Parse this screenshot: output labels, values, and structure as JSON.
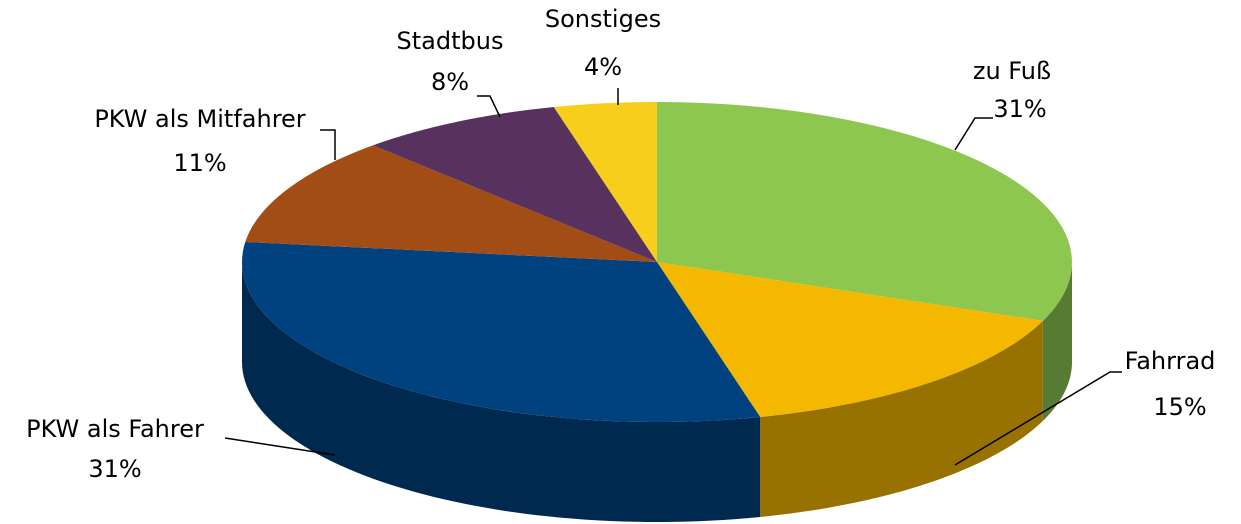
{
  "chart_data": {
    "type": "pie",
    "categories": [
      "zu Fuß",
      "Fahrrad",
      "PKW als Fahrer",
      "PKW als Mitfahrer",
      "Stadtbus",
      "Sonstiges"
    ],
    "values": [
      31,
      15,
      31,
      11,
      8,
      4
    ],
    "value_labels": [
      "31%",
      "15%",
      "31%",
      "11%",
      "8%",
      "4%"
    ],
    "colors": [
      "#8dc750",
      "#f5b800",
      "#00427f",
      "#a24d15",
      "#57325e",
      "#f7ce1c"
    ]
  }
}
